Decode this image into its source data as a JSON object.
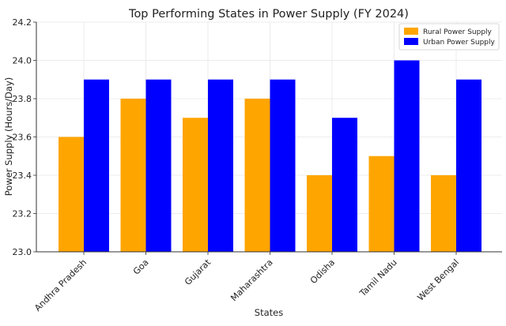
{
  "chart_data": {
    "type": "bar",
    "title": "Top Performing States in Power Supply (FY 2024)",
    "xlabel": "States",
    "ylabel": "Power Supply (Hours/Day)",
    "categories": [
      "Andhra Pradesh",
      "Goa",
      "Gujarat",
      "Maharashtra",
      "Odisha",
      "Tamil Nadu",
      "West Bengal"
    ],
    "series": [
      {
        "name": "Rural Power Supply",
        "color": "#FFA500",
        "values": [
          23.6,
          23.8,
          23.7,
          23.8,
          23.4,
          23.5,
          23.4
        ]
      },
      {
        "name": "Urban Power Supply",
        "color": "#0000FF",
        "values": [
          23.9,
          23.9,
          23.9,
          23.9,
          23.7,
          24.0,
          23.9
        ]
      }
    ],
    "ylim": [
      23.0,
      24.2
    ],
    "yticks": [
      "23.0",
      "23.2",
      "23.4",
      "23.6",
      "23.8",
      "24.0",
      "24.2"
    ],
    "grid": true,
    "legend_position": "top-right"
  }
}
